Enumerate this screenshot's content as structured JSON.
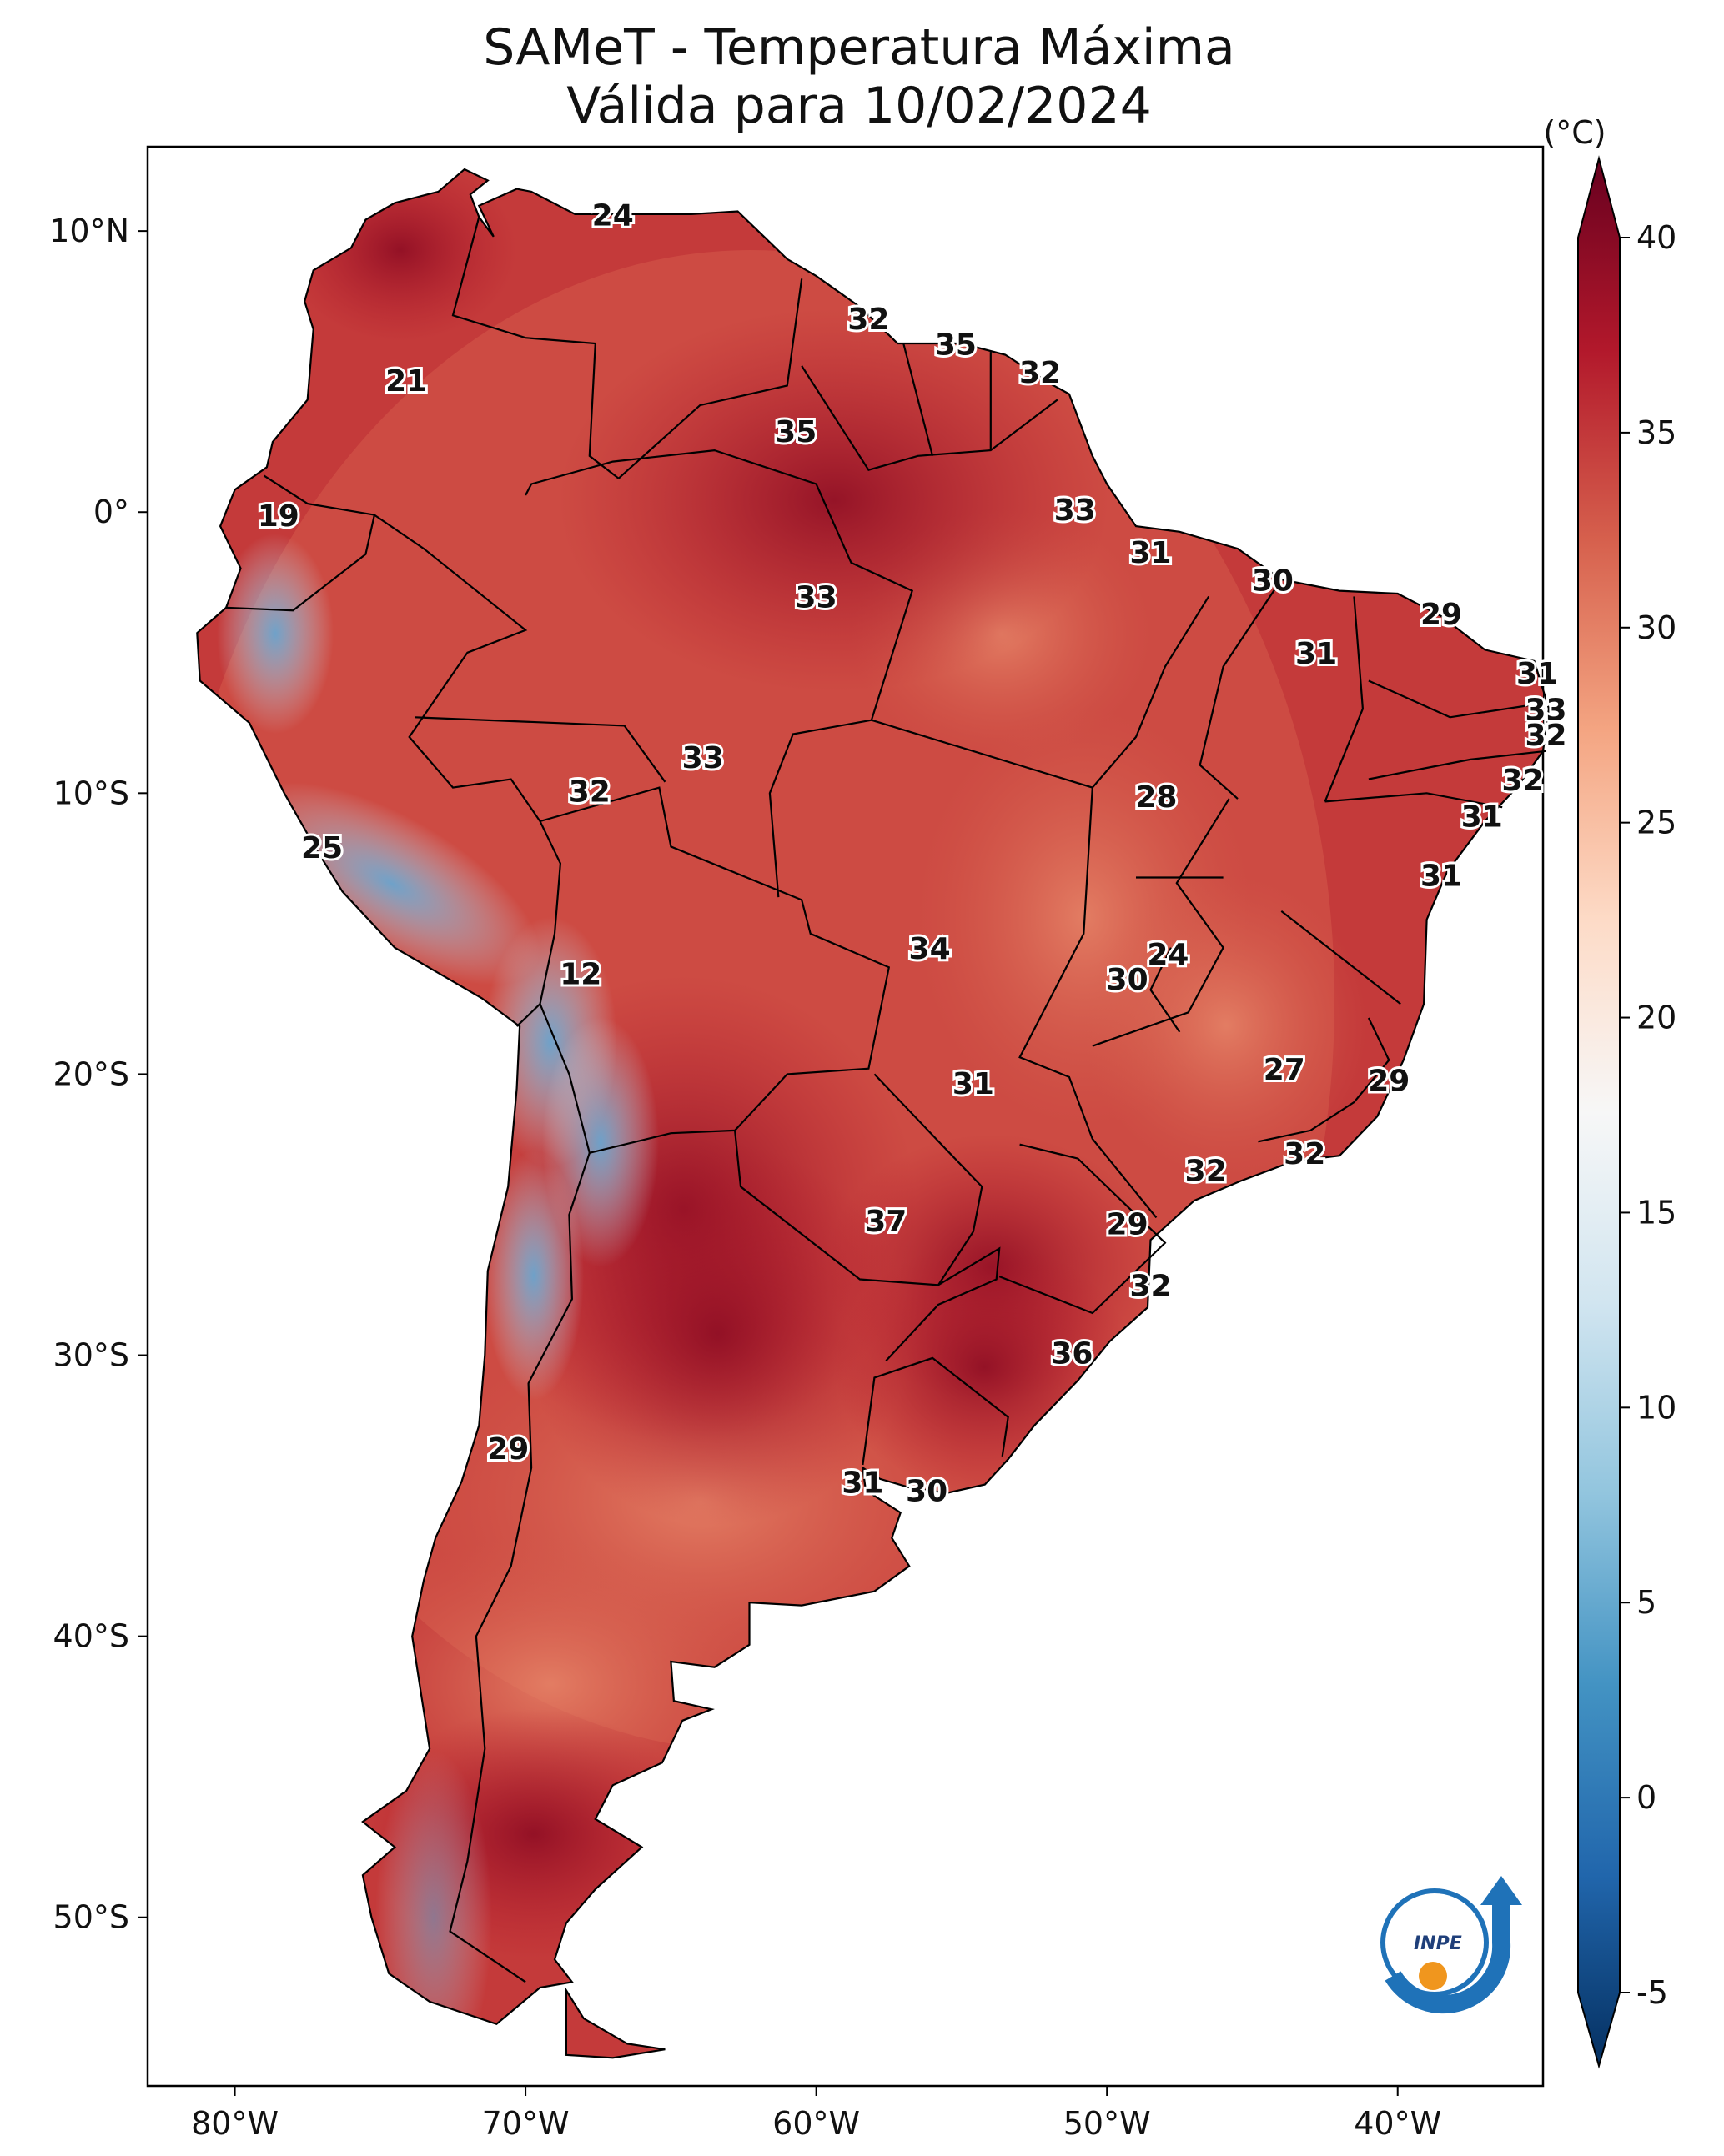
{
  "title": {
    "line1": "SAMeT - Temperatura Máxima",
    "line2": "Válida para 10/02/2024"
  },
  "colorbar": {
    "unit": "(°C)",
    "min": -5,
    "max": 40,
    "ticks": [
      "40",
      "35",
      "30",
      "25",
      "20",
      "15",
      "10",
      "5",
      "0",
      "-5"
    ],
    "colors": [
      "#053061",
      "#2166ac",
      "#4393c3",
      "#92c5de",
      "#d1e5f0",
      "#f7f7f7",
      "#fddbc7",
      "#f4a582",
      "#d6604d",
      "#b2182b",
      "#67001f"
    ]
  },
  "axes": {
    "lon_labels": [
      "80°W",
      "70°W",
      "60°W",
      "50°W",
      "40°W"
    ],
    "lat_labels": [
      "10°N",
      "0°",
      "10°S",
      "20°S",
      "30°S",
      "40°S",
      "50°S"
    ]
  },
  "station_labels": [
    {
      "text": "24",
      "lat": 10.5,
      "lon": -67.0
    },
    {
      "text": "21",
      "lat": 4.6,
      "lon": -74.1
    },
    {
      "text": "19",
      "lat": -0.2,
      "lon": -78.5
    },
    {
      "text": "32",
      "lat": 6.8,
      "lon": -58.2
    },
    {
      "text": "35",
      "lat": 5.9,
      "lon": -55.2
    },
    {
      "text": "32",
      "lat": 4.9,
      "lon": -52.3
    },
    {
      "text": "35",
      "lat": 2.8,
      "lon": -60.7
    },
    {
      "text": "33",
      "lat": 0.0,
      "lon": -51.1
    },
    {
      "text": "31",
      "lat": -1.5,
      "lon": -48.5
    },
    {
      "text": "30",
      "lat": -2.5,
      "lon": -44.3
    },
    {
      "text": "33",
      "lat": -3.1,
      "lon": -60.0
    },
    {
      "text": "29",
      "lat": -3.7,
      "lon": -38.5
    },
    {
      "text": "31",
      "lat": -5.1,
      "lon": -42.8
    },
    {
      "text": "31",
      "lat": -5.8,
      "lon": -35.2
    },
    {
      "text": "33",
      "lat": -7.1,
      "lon": -34.9
    },
    {
      "text": "32",
      "lat": -8.0,
      "lon": -34.9
    },
    {
      "text": "32",
      "lat": -9.6,
      "lon": -35.7
    },
    {
      "text": "31",
      "lat": -10.9,
      "lon": -37.1
    },
    {
      "text": "31",
      "lat": -13.0,
      "lon": -38.5
    },
    {
      "text": "33",
      "lat": -8.8,
      "lon": -63.9
    },
    {
      "text": "32",
      "lat": -10.0,
      "lon": -67.8
    },
    {
      "text": "28",
      "lat": -10.2,
      "lon": -48.3
    },
    {
      "text": "25",
      "lat": -12.0,
      "lon": -77.0
    },
    {
      "text": "34",
      "lat": -15.6,
      "lon": -56.1
    },
    {
      "text": "24",
      "lat": -15.8,
      "lon": -47.9
    },
    {
      "text": "30",
      "lat": -16.7,
      "lon": -49.3
    },
    {
      "text": "12",
      "lat": -16.5,
      "lon": -68.1
    },
    {
      "text": "27",
      "lat": -19.9,
      "lon": -43.9
    },
    {
      "text": "29",
      "lat": -20.3,
      "lon": -40.3
    },
    {
      "text": "31",
      "lat": -20.4,
      "lon": -54.6
    },
    {
      "text": "32",
      "lat": -22.9,
      "lon": -43.2
    },
    {
      "text": "32",
      "lat": -23.5,
      "lon": -46.6
    },
    {
      "text": "37",
      "lat": -25.3,
      "lon": -57.6
    },
    {
      "text": "29",
      "lat": -25.4,
      "lon": -49.3
    },
    {
      "text": "32",
      "lat": -27.6,
      "lon": -48.5
    },
    {
      "text": "36",
      "lat": -30.0,
      "lon": -51.2
    },
    {
      "text": "29",
      "lat": -33.4,
      "lon": -70.6
    },
    {
      "text": "31",
      "lat": -34.6,
      "lon": -58.4
    },
    {
      "text": "30",
      "lat": -34.9,
      "lon": -56.2
    }
  ]
}
